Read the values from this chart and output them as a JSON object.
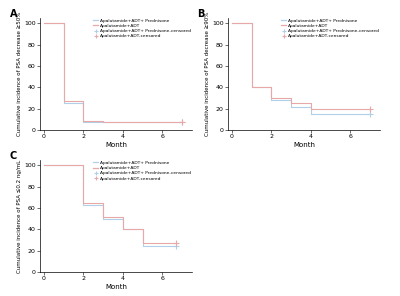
{
  "panel_A": {
    "label": "A",
    "ylabel": "Cumulative incidence of PSA decrease ≥50%",
    "xlabel": "Month",
    "ylim": [
      0,
      105
    ],
    "xlim": [
      -0.2,
      7.5
    ],
    "xticks": [
      0,
      2,
      4,
      6
    ],
    "yticks": [
      0,
      20,
      40,
      60,
      80,
      100
    ],
    "line1_x": [
      0,
      1,
      1,
      2,
      2,
      3,
      3,
      7
    ],
    "line1_y": [
      100,
      100,
      25,
      25,
      8,
      8,
      8,
      8
    ],
    "line2_x": [
      0,
      1,
      1,
      2,
      2,
      3,
      3,
      7
    ],
    "line2_y": [
      100,
      100,
      27,
      27,
      9,
      9,
      8,
      8
    ],
    "censor1_x": [
      7
    ],
    "censor1_y": [
      8
    ],
    "censor2_x": [
      7
    ],
    "censor2_y": [
      8
    ],
    "color1": "#b0cfe8",
    "color2": "#e8a8a8"
  },
  "panel_B": {
    "label": "B",
    "ylabel": "Cumulative incidence of PSA decrease ≥90%",
    "xlabel": "Month",
    "ylim": [
      0,
      105
    ],
    "xlim": [
      -0.2,
      7.5
    ],
    "xticks": [
      0,
      2,
      4,
      6
    ],
    "yticks": [
      0,
      20,
      40,
      60,
      80,
      100
    ],
    "line1_x": [
      0,
      1,
      1,
      2,
      2,
      3,
      3,
      4,
      4,
      7
    ],
    "line1_y": [
      100,
      100,
      40,
      40,
      28,
      28,
      22,
      22,
      15,
      15
    ],
    "line2_x": [
      0,
      1,
      1,
      2,
      2,
      3,
      3,
      4,
      4,
      7
    ],
    "line2_y": [
      100,
      100,
      40,
      40,
      30,
      30,
      25,
      25,
      20,
      20
    ],
    "censor1_x": [
      7
    ],
    "censor1_y": [
      15
    ],
    "censor2_x": [
      7
    ],
    "censor2_y": [
      20
    ],
    "color1": "#b0cfe8",
    "color2": "#e8a8a8"
  },
  "panel_C": {
    "label": "C",
    "ylabel": "Cumulative incidence of PSA ≤0.2 ng/mL",
    "xlabel": "Month",
    "ylim": [
      0,
      105
    ],
    "xlim": [
      -0.2,
      7.5
    ],
    "xticks": [
      0,
      2,
      4,
      6
    ],
    "yticks": [
      0,
      20,
      40,
      60,
      80,
      100
    ],
    "line1_x": [
      0,
      2,
      2,
      3,
      3,
      4,
      4,
      5,
      5,
      6.7
    ],
    "line1_y": [
      100,
      100,
      63,
      63,
      50,
      50,
      40,
      40,
      25,
      25
    ],
    "line2_x": [
      0,
      2,
      2,
      3,
      3,
      4,
      4,
      5,
      5,
      6.7
    ],
    "line2_y": [
      100,
      100,
      65,
      65,
      52,
      52,
      40,
      40,
      27,
      27
    ],
    "censor1_x": [
      6.7
    ],
    "censor1_y": [
      25
    ],
    "censor2_x": [
      6.7
    ],
    "censor2_y": [
      27
    ],
    "color1": "#b0cfe8",
    "color2": "#e8a8a8"
  },
  "legend_labels": [
    "Apalutamide+ADT+ Prednisone",
    "Apalutamide+ADT",
    "Apalutamide+ADT+ Prednisone-censored",
    "Apalutamide+ADT-censored"
  ],
  "legend_colors": [
    "#b0cfe8",
    "#e8a8a8",
    "#b0cfe8",
    "#e8a8a8"
  ],
  "bg_color": "#ffffff"
}
